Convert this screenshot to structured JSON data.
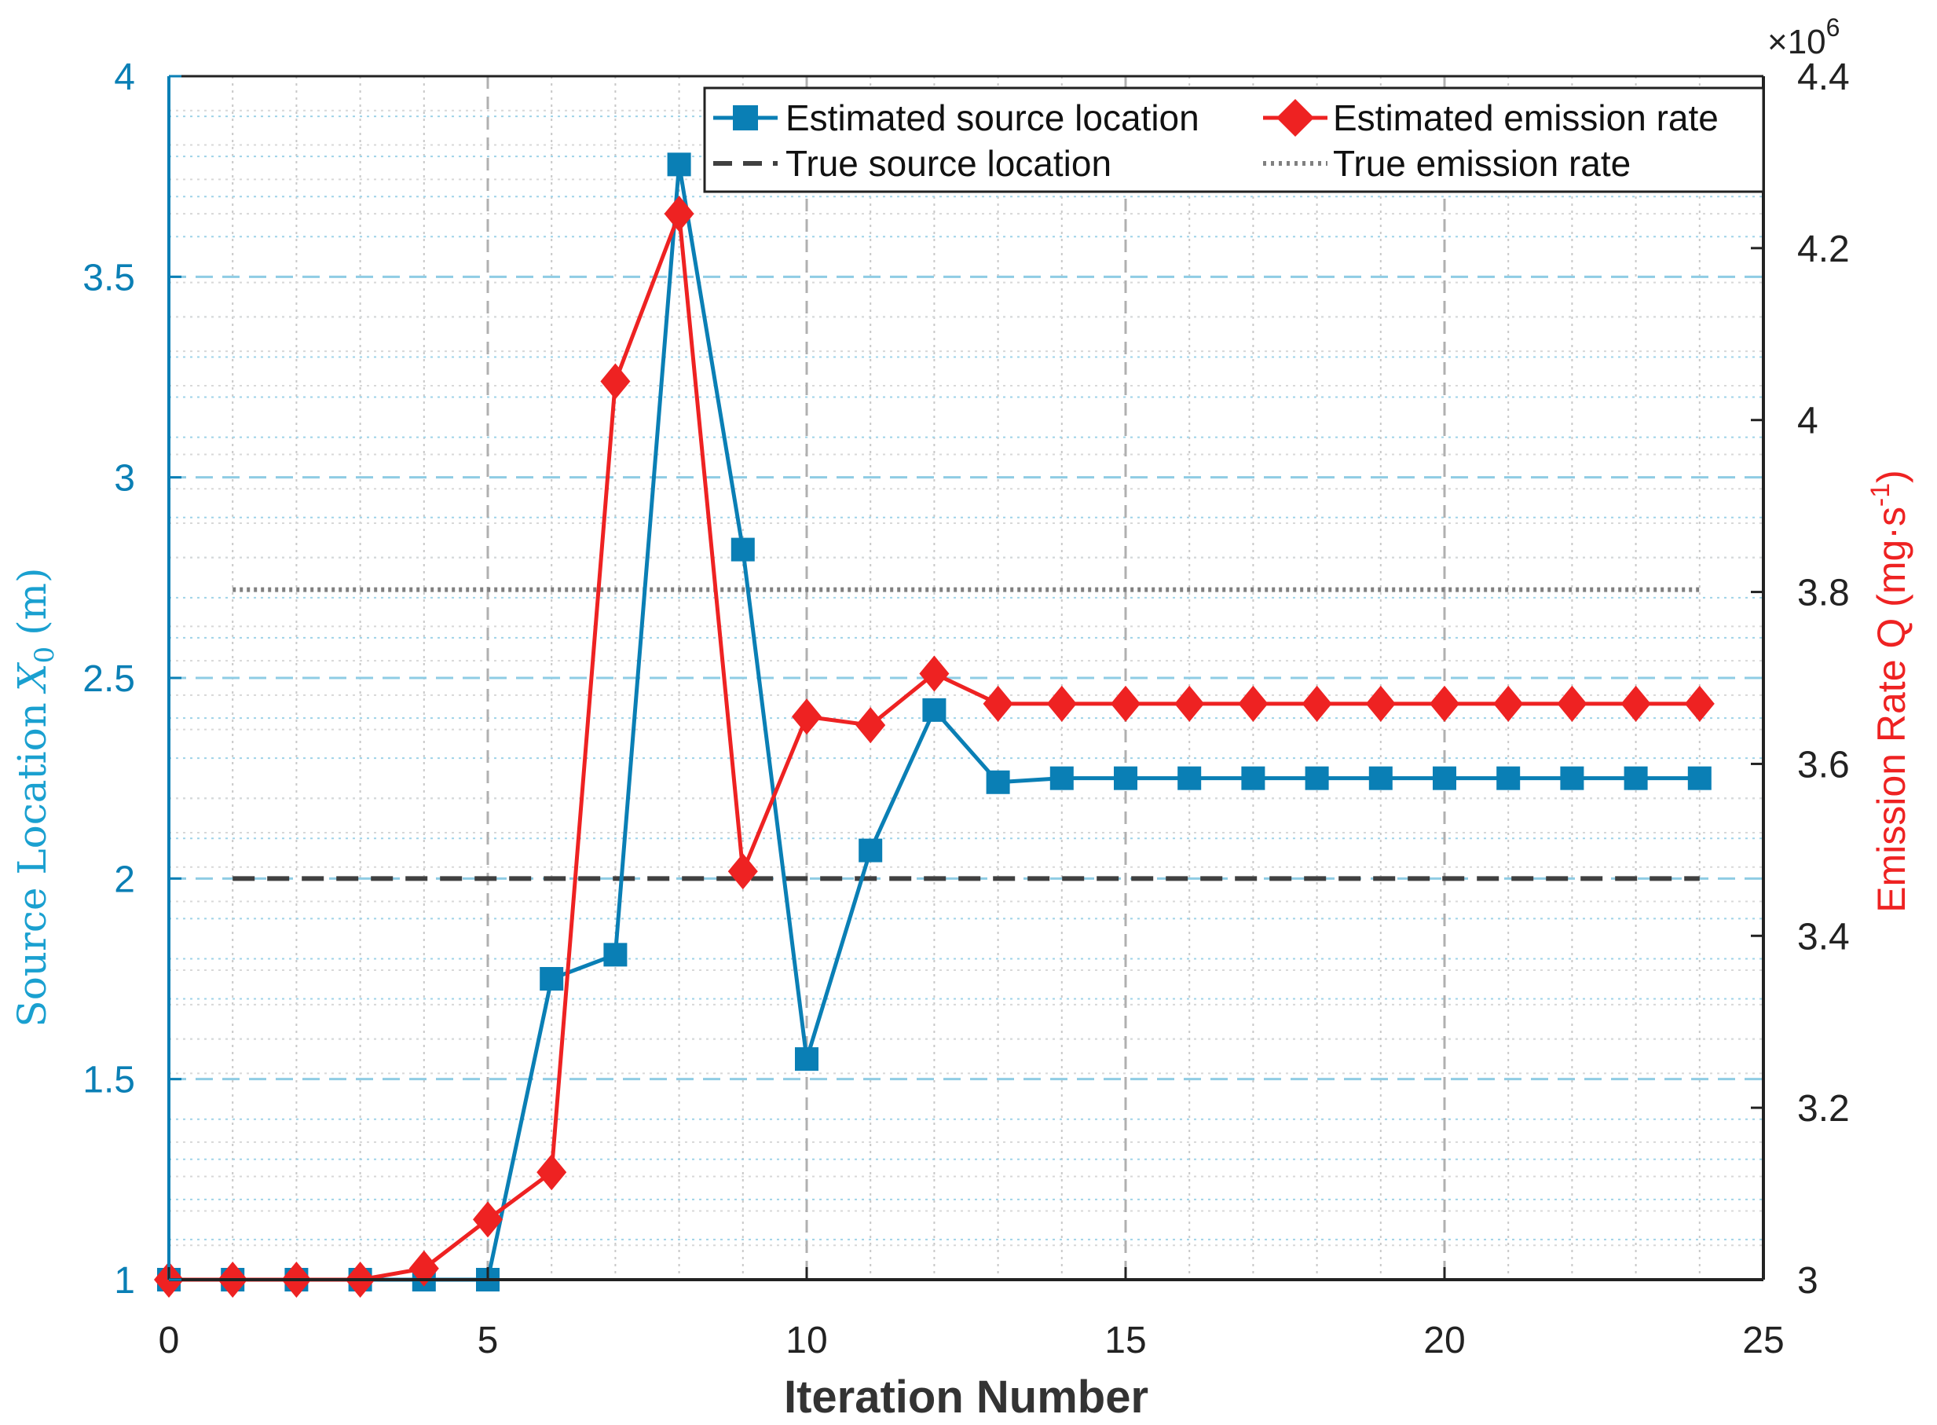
{
  "chart_data": {
    "type": "line",
    "xlabel": "Iteration Number",
    "ylabel_left_prefix": "Source Location",
    "ylabel_left_var": "X",
    "ylabel_left_sub": "0",
    "ylabel_left_unit": "(m)",
    "ylabel_right_main": "Emission Rate Q (mg·s",
    "ylabel_right_sup": "-1",
    "ylabel_right_close": ")",
    "right_exponent_prefix": "×10",
    "right_exponent_power": "6",
    "xlim": [
      0,
      25
    ],
    "ylim_left": [
      1,
      4
    ],
    "ylim_right": [
      3.0,
      4.4
    ],
    "xticks": [
      0,
      5,
      10,
      15,
      20,
      25
    ],
    "xtick_labels": [
      "0",
      "5",
      "10",
      "15",
      "20",
      "25"
    ],
    "yticks_left": [
      1,
      1.5,
      2,
      2.5,
      3,
      3.5,
      4
    ],
    "ytick_labels_left": [
      "1",
      "1.5",
      "2",
      "2.5",
      "3",
      "3.5",
      "4"
    ],
    "yticks_right": [
      3.0,
      3.2,
      3.4,
      3.6,
      3.8,
      4.0,
      4.2,
      4.4
    ],
    "ytick_labels_right": [
      "3",
      "3.2",
      "3.4",
      "3.6",
      "3.8",
      "4",
      "4.2",
      "4.4"
    ],
    "grid": true,
    "legend_position": "top-right",
    "series": [
      {
        "name": "Estimated source location",
        "axis": "left",
        "color": "#0a7fb5",
        "marker": "square",
        "x": [
          0,
          1,
          2,
          3,
          4,
          5,
          6,
          7,
          8,
          9,
          10,
          11,
          12,
          13,
          14,
          15,
          16,
          17,
          18,
          19,
          20,
          21,
          22,
          23,
          24
        ],
        "values": [
          1,
          1,
          1,
          1,
          1,
          1,
          1.75,
          1.81,
          3.78,
          2.82,
          1.55,
          2.07,
          2.42,
          2.24,
          2.25,
          2.25,
          2.25,
          2.25,
          2.25,
          2.25,
          2.25,
          2.25,
          2.25,
          2.25,
          2.25
        ]
      },
      {
        "name": "Estimated emission rate",
        "axis": "right",
        "color": "#ee2222",
        "marker": "diamond",
        "x": [
          0,
          1,
          2,
          3,
          4,
          5,
          6,
          7,
          8,
          9,
          10,
          11,
          12,
          13,
          14,
          15,
          16,
          17,
          18,
          19,
          20,
          21,
          22,
          23,
          24
        ],
        "values": [
          3.0,
          3.0,
          3.0,
          3.0,
          3.013,
          3.07,
          3.125,
          4.045,
          4.24,
          3.475,
          3.655,
          3.645,
          3.705,
          3.67,
          3.67,
          3.67,
          3.67,
          3.67,
          3.67,
          3.67,
          3.67,
          3.67,
          3.67,
          3.67,
          3.67
        ]
      },
      {
        "name": "True source location",
        "axis": "left",
        "color": "#404040",
        "style": "dashed",
        "x": [
          1,
          24
        ],
        "values": [
          2,
          2
        ]
      },
      {
        "name": "True emission rate",
        "axis": "left",
        "color": "#808080",
        "style": "dotted",
        "x": [
          1,
          24
        ],
        "values": [
          2.72,
          2.72
        ]
      }
    ]
  }
}
